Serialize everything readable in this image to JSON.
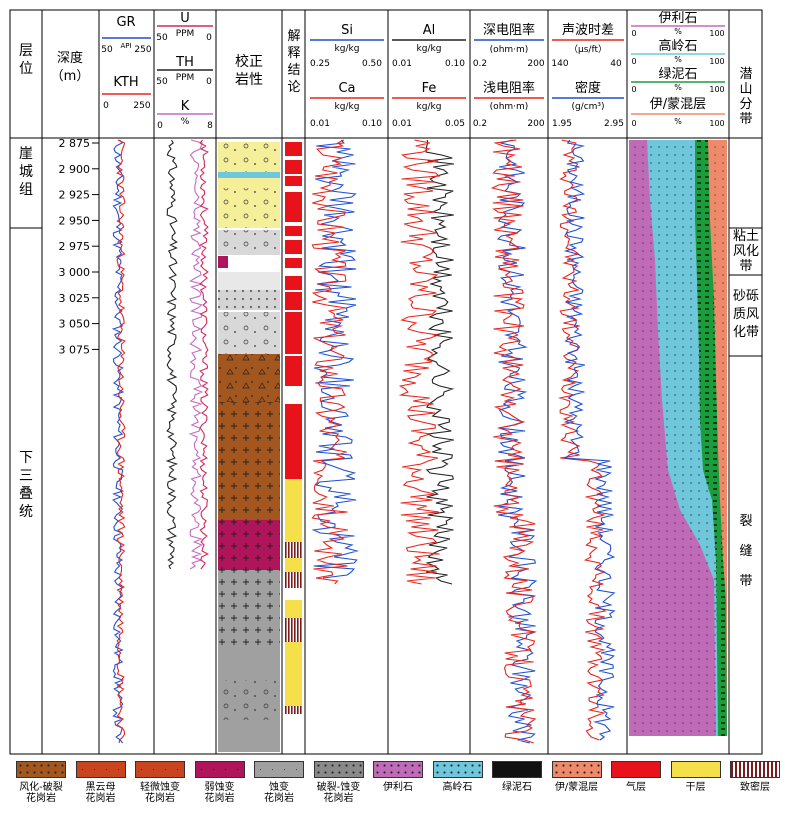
{
  "header": {
    "layer": "层位",
    "depth": "深度\n（m）",
    "gr": {
      "name": "GR",
      "scale": [
        "50",
        "API",
        "250"
      ]
    },
    "kth": {
      "name": "KTH",
      "scale": [
        "0",
        "250"
      ]
    },
    "u": {
      "name": "U",
      "unit": "PPM",
      "scale": [
        "50",
        "0"
      ]
    },
    "th": {
      "name": "TH",
      "unit": "PPM",
      "scale": [
        "50",
        "0"
      ]
    },
    "k": {
      "name": "K",
      "unit": "%",
      "scale": [
        "0",
        "8"
      ]
    },
    "lith": "校正\n岩性",
    "interp": "解释结论",
    "si": {
      "name": "Si",
      "unit": "kg/kg",
      "scale": [
        "0.25",
        "0.50"
      ]
    },
    "ca": {
      "name": "Ca",
      "unit": "kg/kg",
      "scale": [
        "0.01",
        "0.10"
      ]
    },
    "al": {
      "name": "Al",
      "unit": "kg/kg",
      "scale": [
        "0.01",
        "0.10"
      ]
    },
    "fe": {
      "name": "Fe",
      "unit": "kg/kg",
      "scale": [
        "0.01",
        "0.05"
      ]
    },
    "deep": {
      "name": "深电阻率",
      "unit": "(ohm·m)",
      "scale": [
        "0.2",
        "200"
      ]
    },
    "shallow": {
      "name": "浅电阻率",
      "unit": "(ohm·m)",
      "scale": [
        "0.2",
        "200"
      ]
    },
    "sonic": {
      "name": "声波时差",
      "unit": "（μs/ft）",
      "scale": [
        "140",
        "40"
      ]
    },
    "density": {
      "name": "密度",
      "unit": "(g/cm³)",
      "scale": [
        "1.95",
        "2.95"
      ]
    },
    "clay": [
      {
        "name": "伊利石",
        "unit": "%",
        "scale": [
          "0",
          "100"
        ]
      },
      {
        "name": "高岭石",
        "unit": "%",
        "scale": [
          "0",
          "100"
        ]
      },
      {
        "name": "绿泥石",
        "unit": "%",
        "scale": [
          "0",
          "100"
        ]
      },
      {
        "name": "伊/蒙混层",
        "unit": "%",
        "scale": [
          "0",
          "100"
        ]
      }
    ],
    "zone": "潜山分带"
  },
  "depth_ticks": [
    "2 875",
    "2 900",
    "2 925",
    "2 950",
    "2 975",
    "3 000",
    "3 025",
    "3 050",
    "3 075"
  ],
  "formations": [
    {
      "name": "崖城组"
    },
    {
      "name": "下三叠统"
    }
  ],
  "zones": [
    {
      "name": "粘土风化带"
    },
    {
      "name": "砂砾质风化带"
    },
    {
      "name": "裂缝带"
    }
  ],
  "colors": {
    "gr": "#1f4fd1",
    "kth": "#e8231b",
    "u": "#d2285a",
    "th": "#222222",
    "k": "#c46bc4",
    "si": "#1f4fd1",
    "ca": "#e8231b",
    "al": "#222222",
    "fe": "#e8231b",
    "deep": "#1f4fd1",
    "shallow": "#e8231b",
    "sonic": "#e8231b",
    "density": "#1f4fd1",
    "illite": "#c06bb8",
    "kaolinite": "#6ec7da",
    "chlorite": "#1a9e3c",
    "mixed": "#ee8a6a",
    "gas": "#e8121a",
    "dry": "#f5e04a",
    "tight": "#7a1c1c"
  },
  "legend": [
    {
      "label": "风化-破裂\n花岗岩",
      "color": "#a3561e",
      "pattern": "dots"
    },
    {
      "label": "黑云母\n花岗岩",
      "color": "#c9451f",
      "pattern": "cross"
    },
    {
      "label": "轻微蚀变\n花岗岩",
      "color": "#c9451f",
      "pattern": "cross"
    },
    {
      "label": "弱蚀变\n花岗岩",
      "color": "#b0155b",
      "pattern": "cross"
    },
    {
      "label": "蚀变\n花岗岩",
      "color": "#a0a0a0",
      "pattern": "cross"
    },
    {
      "label": "破裂-蚀变\n花岗岩",
      "color": "#8a8a8a",
      "pattern": "dots"
    },
    {
      "label": "伊利石",
      "color": "#c06bb8",
      "pattern": "dots"
    },
    {
      "label": "高岭石",
      "color": "#6ec7da",
      "pattern": "dots"
    },
    {
      "label": "绿泥石",
      "color": "#1a9e3c",
      "pattern": "dash"
    },
    {
      "label": "伊/蒙混层",
      "color": "#ee8a6a",
      "pattern": "dots"
    },
    {
      "label": "气层",
      "color": "#e8121a",
      "pattern": "none"
    },
    {
      "label": "干层",
      "color": "#f5e04a",
      "pattern": "none"
    },
    {
      "label": "致密层",
      "color": "#7a1c1c",
      "pattern": "stripes"
    }
  ]
}
